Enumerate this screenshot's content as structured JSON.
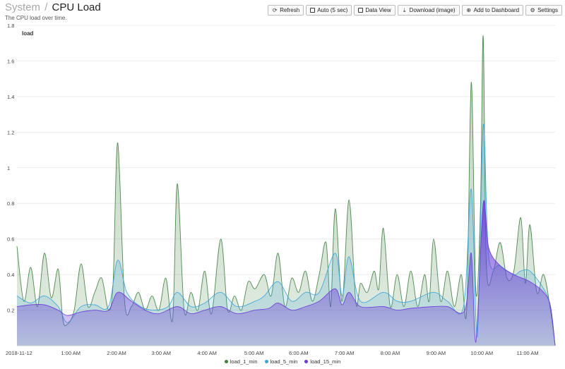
{
  "header": {
    "crumb": "System",
    "separator": "/",
    "title": "CPU Load",
    "subtitle": "The CPU load over time."
  },
  "toolbar": [
    {
      "label": "Refresh",
      "icon": "refresh-icon",
      "glyph": "⟳"
    },
    {
      "label": "Auto (5 sec)",
      "icon": "checkbox-icon",
      "glyph": "box"
    },
    {
      "label": "Data View",
      "icon": "checkbox-icon",
      "glyph": "box"
    },
    {
      "label": "Download (image)",
      "icon": "download-icon",
      "glyph": "⤓"
    },
    {
      "label": "Add to Dashboard",
      "icon": "add-icon",
      "glyph": "⊕"
    },
    {
      "label": "Settings",
      "icon": "gear-icon",
      "glyph": "⚙"
    }
  ],
  "chart_data": {
    "type": "area",
    "ylabel": "load",
    "ylim": [
      0,
      1.8
    ],
    "yticks": [
      0.2,
      0.4,
      0.6,
      0.8,
      1,
      1.2,
      1.4,
      1.6,
      1.8
    ],
    "x_ticks": [
      "2018-11-12",
      "1:00 AM",
      "2:00 AM",
      "3:00 AM",
      "4:00 AM",
      "5:00 AM",
      "6:00 AM",
      "7:00 AM",
      "8:00 AM",
      "9:00 AM",
      "10:00 AM",
      "11:00 AM"
    ],
    "x_hours": [
      0,
      1.175,
      2.175,
      3.15,
      4.15,
      5.175,
      6.15,
      7.15,
      8.15,
      9.15,
      10.15,
      11.15
    ],
    "x_range": [
      0,
      11.75
    ],
    "legend_position": "bottom",
    "series": [
      {
        "name": "load_1_min",
        "color": "#3f7f3f",
        "points": [
          [
            0,
            0.56
          ],
          [
            0.15,
            0.25
          ],
          [
            0.3,
            0.44
          ],
          [
            0.45,
            0.22
          ],
          [
            0.6,
            0.52
          ],
          [
            0.75,
            0.27
          ],
          [
            0.9,
            0.43
          ],
          [
            1.0,
            0.15
          ],
          [
            1.1,
            0.12
          ],
          [
            1.25,
            0.2
          ],
          [
            1.4,
            0.46
          ],
          [
            1.55,
            0.22
          ],
          [
            1.7,
            0.3
          ],
          [
            1.85,
            0.38
          ],
          [
            2.0,
            0.2
          ],
          [
            2.1,
            0.36
          ],
          [
            2.2,
            1.14
          ],
          [
            2.35,
            0.25
          ],
          [
            2.5,
            0.22
          ],
          [
            2.65,
            0.3
          ],
          [
            2.8,
            0.2
          ],
          [
            2.95,
            0.28
          ],
          [
            3.1,
            0.2
          ],
          [
            3.25,
            0.38
          ],
          [
            3.4,
            0.15
          ],
          [
            3.5,
            0.91
          ],
          [
            3.65,
            0.2
          ],
          [
            3.8,
            0.3
          ],
          [
            3.95,
            0.2
          ],
          [
            4.1,
            0.42
          ],
          [
            4.25,
            0.18
          ],
          [
            4.45,
            0.6
          ],
          [
            4.6,
            0.2
          ],
          [
            4.75,
            0.28
          ],
          [
            4.9,
            0.2
          ],
          [
            5.05,
            0.36
          ],
          [
            5.2,
            0.32
          ],
          [
            5.4,
            0.4
          ],
          [
            5.55,
            0.28
          ],
          [
            5.7,
            0.52
          ],
          [
            5.85,
            0.22
          ],
          [
            6.0,
            0.38
          ],
          [
            6.15,
            0.3
          ],
          [
            6.3,
            0.42
          ],
          [
            6.45,
            0.25
          ],
          [
            6.6,
            0.4
          ],
          [
            6.75,
            0.58
          ],
          [
            6.85,
            0.22
          ],
          [
            6.95,
            0.77
          ],
          [
            7.1,
            0.25
          ],
          [
            7.25,
            0.82
          ],
          [
            7.4,
            0.24
          ],
          [
            7.5,
            0.35
          ],
          [
            7.65,
            0.3
          ],
          [
            7.8,
            0.42
          ],
          [
            7.9,
            0.32
          ],
          [
            8.0,
            0.66
          ],
          [
            8.15,
            0.22
          ],
          [
            8.3,
            0.4
          ],
          [
            8.45,
            0.22
          ],
          [
            8.6,
            0.42
          ],
          [
            8.75,
            0.22
          ],
          [
            8.9,
            0.4
          ],
          [
            9.0,
            0.25
          ],
          [
            9.1,
            0.6
          ],
          [
            9.25,
            0.25
          ],
          [
            9.4,
            0.42
          ],
          [
            9.55,
            0.22
          ],
          [
            9.7,
            0.4
          ],
          [
            9.82,
            0.2
          ],
          [
            9.92,
            1.48
          ],
          [
            10.02,
            0.3
          ],
          [
            10.12,
            0.78
          ],
          [
            10.18,
            1.74
          ],
          [
            10.25,
            0.45
          ],
          [
            10.4,
            0.42
          ],
          [
            10.55,
            0.58
          ],
          [
            10.7,
            0.38
          ],
          [
            10.85,
            0.42
          ],
          [
            11.0,
            0.72
          ],
          [
            11.1,
            0.35
          ],
          [
            11.2,
            0.68
          ],
          [
            11.35,
            0.3
          ],
          [
            11.5,
            0.4
          ],
          [
            11.65,
            0.2
          ],
          [
            11.75,
            0.0
          ]
        ]
      },
      {
        "name": "load_5_min",
        "color": "#3aa3d8",
        "points": [
          [
            0,
            0.28
          ],
          [
            0.3,
            0.24
          ],
          [
            0.6,
            0.28
          ],
          [
            0.9,
            0.22
          ],
          [
            1.1,
            0.13
          ],
          [
            1.4,
            0.22
          ],
          [
            1.7,
            0.23
          ],
          [
            2.0,
            0.22
          ],
          [
            2.2,
            0.48
          ],
          [
            2.4,
            0.3
          ],
          [
            2.7,
            0.22
          ],
          [
            3.0,
            0.2
          ],
          [
            3.3,
            0.22
          ],
          [
            3.5,
            0.3
          ],
          [
            3.8,
            0.22
          ],
          [
            4.1,
            0.24
          ],
          [
            4.45,
            0.3
          ],
          [
            4.8,
            0.22
          ],
          [
            5.2,
            0.25
          ],
          [
            5.4,
            0.28
          ],
          [
            5.7,
            0.36
          ],
          [
            6.0,
            0.25
          ],
          [
            6.3,
            0.3
          ],
          [
            6.6,
            0.3
          ],
          [
            6.95,
            0.52
          ],
          [
            7.1,
            0.28
          ],
          [
            7.25,
            0.5
          ],
          [
            7.5,
            0.25
          ],
          [
            8.0,
            0.3
          ],
          [
            8.3,
            0.25
          ],
          [
            8.6,
            0.25
          ],
          [
            9.1,
            0.3
          ],
          [
            9.4,
            0.25
          ],
          [
            9.75,
            0.22
          ],
          [
            9.92,
            0.88
          ],
          [
            10.05,
            0.05
          ],
          [
            10.18,
            1.24
          ],
          [
            10.3,
            0.5
          ],
          [
            10.55,
            0.45
          ],
          [
            10.85,
            0.4
          ],
          [
            11.0,
            0.42
          ],
          [
            11.2,
            0.42
          ],
          [
            11.5,
            0.32
          ],
          [
            11.65,
            0.22
          ],
          [
            11.75,
            0.0
          ]
        ]
      },
      {
        "name": "load_15_min",
        "color": "#6a3ad8",
        "points": [
          [
            0,
            0.22
          ],
          [
            0.3,
            0.23
          ],
          [
            0.6,
            0.23
          ],
          [
            0.9,
            0.2
          ],
          [
            1.1,
            0.17
          ],
          [
            1.4,
            0.19
          ],
          [
            1.7,
            0.2
          ],
          [
            2.0,
            0.2
          ],
          [
            2.2,
            0.3
          ],
          [
            2.5,
            0.25
          ],
          [
            2.8,
            0.2
          ],
          [
            3.1,
            0.18
          ],
          [
            3.5,
            0.22
          ],
          [
            3.8,
            0.18
          ],
          [
            4.1,
            0.2
          ],
          [
            4.45,
            0.22
          ],
          [
            4.8,
            0.18
          ],
          [
            5.2,
            0.2
          ],
          [
            5.5,
            0.21
          ],
          [
            5.7,
            0.24
          ],
          [
            6.0,
            0.2
          ],
          [
            6.3,
            0.22
          ],
          [
            6.6,
            0.25
          ],
          [
            6.95,
            0.32
          ],
          [
            7.1,
            0.23
          ],
          [
            7.25,
            0.3
          ],
          [
            7.5,
            0.22
          ],
          [
            8.0,
            0.22
          ],
          [
            8.3,
            0.2
          ],
          [
            8.6,
            0.21
          ],
          [
            9.1,
            0.22
          ],
          [
            9.4,
            0.22
          ],
          [
            9.78,
            0.2
          ],
          [
            9.92,
            0.52
          ],
          [
            10.02,
            0.02
          ],
          [
            10.18,
            0.8
          ],
          [
            10.3,
            0.55
          ],
          [
            10.55,
            0.45
          ],
          [
            10.85,
            0.4
          ],
          [
            11.2,
            0.36
          ],
          [
            11.5,
            0.3
          ],
          [
            11.65,
            0.22
          ],
          [
            11.75,
            0.0
          ]
        ]
      }
    ]
  }
}
